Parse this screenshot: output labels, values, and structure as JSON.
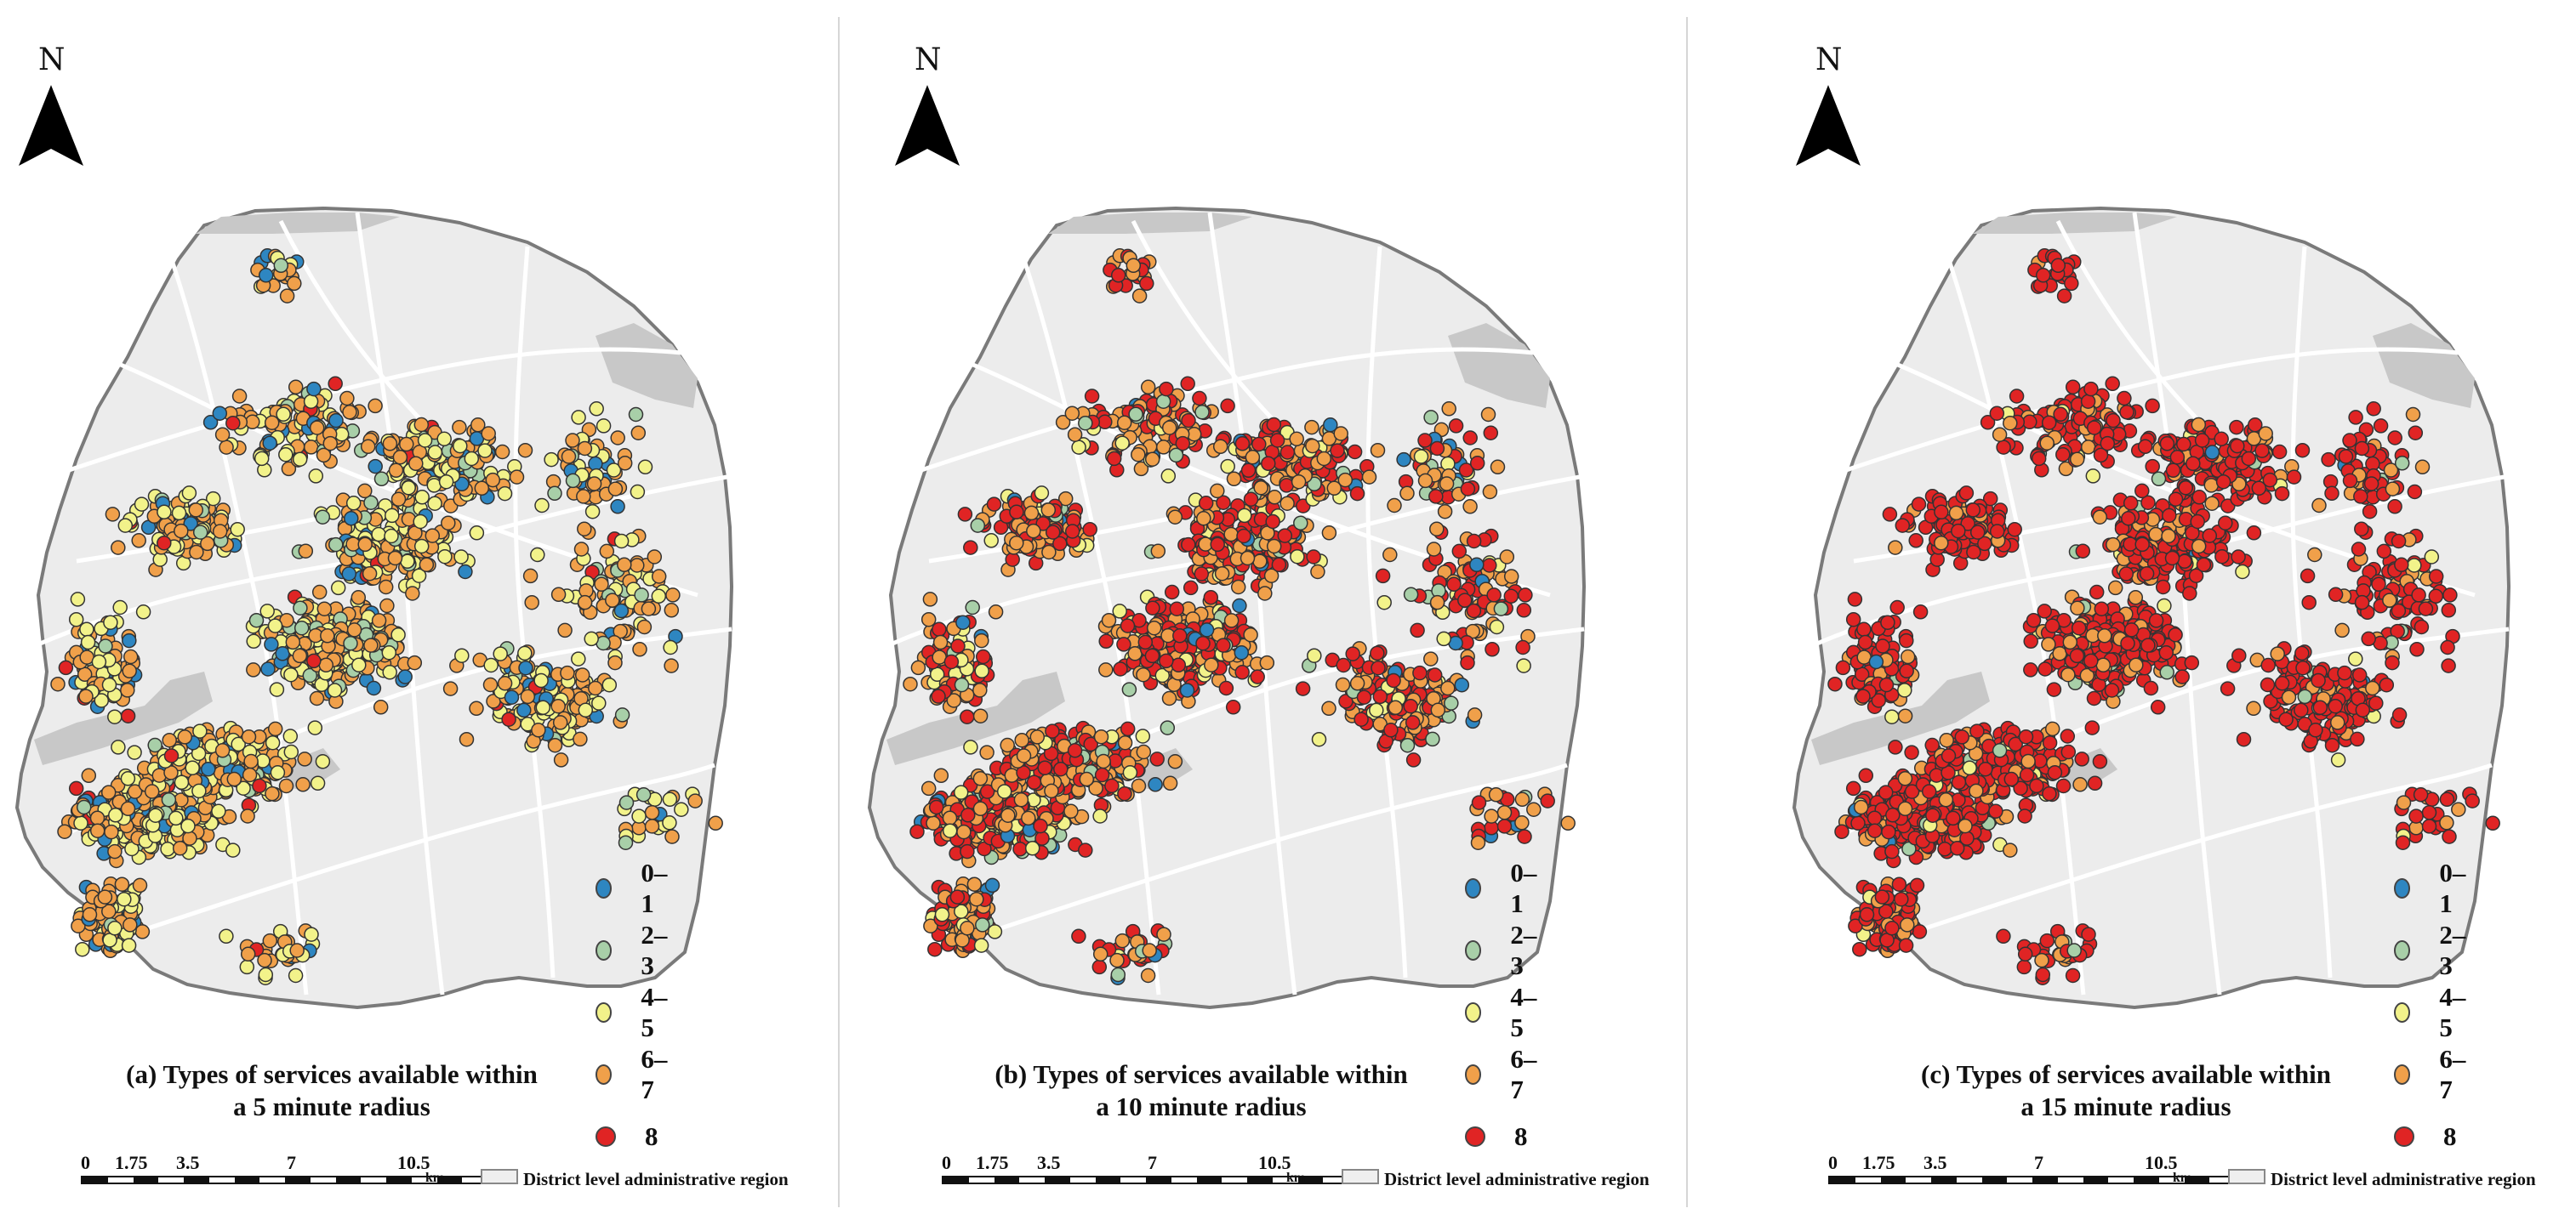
{
  "north_label": "N",
  "legend": [
    {
      "label": "0–1",
      "color": "#2e86c1"
    },
    {
      "label": "2–3",
      "color": "#a8cfa8"
    },
    {
      "label": "4–5",
      "color": "#f2f28a"
    },
    {
      "label": "6–7",
      "color": "#f0a04a"
    },
    {
      "label": "8",
      "color": "#e02424"
    }
  ],
  "scale": {
    "ticks": [
      "0",
      "1.75",
      "3.5",
      "7",
      "10.5"
    ],
    "unit": "km",
    "region_label": "District level administrative region"
  },
  "colors": {
    "region_fill": "#ececec",
    "road": "#ffffff",
    "water": "#c8c8c8",
    "boundary": "#7a7a7a"
  },
  "panels": [
    {
      "caption_line1": "(a) Types of services available within",
      "caption_line2": "a 5 minute radius",
      "class_mix": {
        "0–1": 0.08,
        "2–3": 0.07,
        "4–5": 0.35,
        "6–7": 0.48,
        "8": 0.02
      }
    },
    {
      "caption_line1": "(b) Types of services available within",
      "caption_line2": "a 10 minute radius",
      "class_mix": {
        "0–1": 0.03,
        "2–3": 0.04,
        "4–5": 0.1,
        "6–7": 0.43,
        "8": 0.4
      }
    },
    {
      "caption_line1": "(c) Types of services available within",
      "caption_line2": "a 15 minute radius",
      "class_mix": {
        "0–1": 0.01,
        "2–3": 0.02,
        "4–5": 0.03,
        "6–7": 0.16,
        "8": 0.78
      }
    }
  ]
}
